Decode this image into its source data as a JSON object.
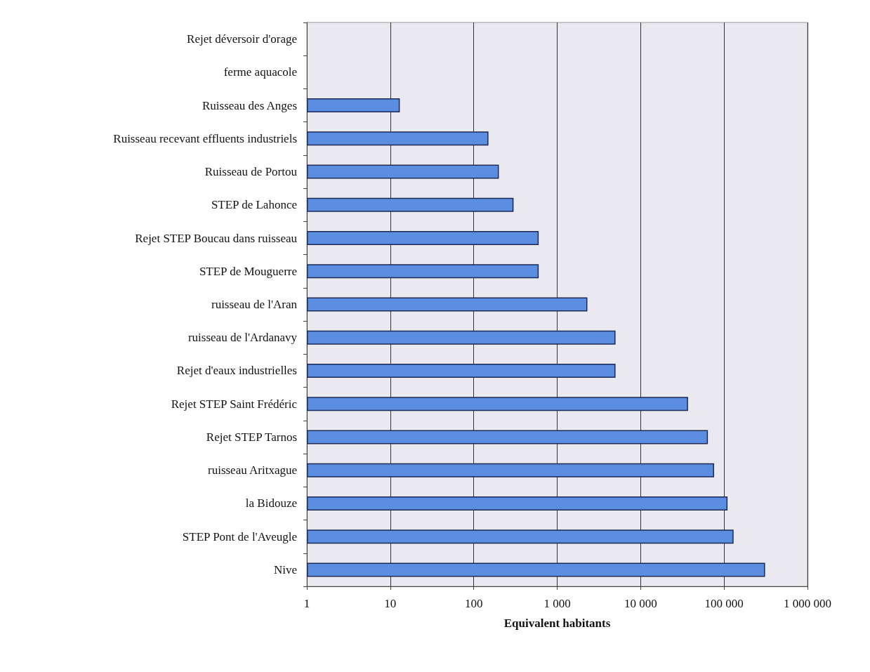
{
  "chart_data": {
    "type": "bar",
    "orientation": "horizontal",
    "log": "x",
    "xlabel": "Equivalent habitants",
    "categories": [
      "Rejet déversoir d'orage",
      "ferme aquacole",
      "Ruisseau des Anges",
      "Ruisseau recevant effluents industriels",
      "Ruisseau de Portou",
      "STEP de Lahonce",
      "Rejet STEP Boucau dans ruisseau",
      "STEP de Mouguerre",
      "ruisseau de l'Aran",
      "ruisseau de l'Ardanavy",
      "Rejet d'eaux industrielles",
      "Rejet STEP Saint Frédéric",
      "Rejet STEP Tarnos",
      "ruisseau Aritxague",
      "la Bidouze",
      "STEP Pont de l'Aveugle",
      "Nive"
    ],
    "values": [
      null,
      null,
      13,
      150,
      200,
      300,
      600,
      600,
      2300,
      5000,
      5000,
      37000,
      64000,
      76000,
      110000,
      130000,
      310000
    ],
    "color": "#5b8ee0",
    "xlim": [
      1,
      1000000
    ],
    "xticks": [
      1,
      10,
      100,
      {
        "value": 1000,
        "label": "1 000"
      },
      {
        "value": 10000,
        "label": "10 000"
      },
      {
        "value": 100000,
        "label": "100 000"
      },
      {
        "value": 1000000,
        "label": "1 000 000"
      }
    ],
    "grid": "x"
  }
}
